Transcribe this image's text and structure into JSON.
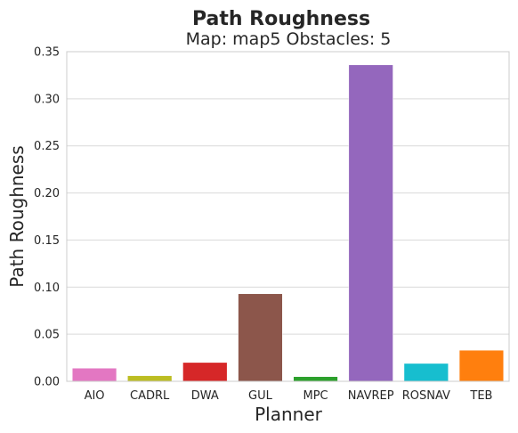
{
  "chart_data": {
    "type": "bar",
    "title": "Path Roughness",
    "subtitle": "Map: map5 Obstacles: 5",
    "xlabel": "Planner",
    "ylabel": "Path Roughness",
    "categories": [
      "AIO",
      "CADRL",
      "DWA",
      "GUL",
      "MPC",
      "NAVREP",
      "ROSNAV",
      "TEB"
    ],
    "values": [
      0.014,
      0.006,
      0.02,
      0.093,
      0.005,
      0.336,
      0.019,
      0.033
    ],
    "colors": [
      "#e377c2",
      "#bcbd22",
      "#d62728",
      "#8c564b",
      "#2ca02c",
      "#9467bd",
      "#17becf",
      "#ff7f0e"
    ],
    "ylim": [
      0,
      0.35
    ],
    "yticks": [
      "0.00",
      "0.05",
      "0.10",
      "0.15",
      "0.20",
      "0.25",
      "0.30",
      "0.35"
    ],
    "grid": true
  }
}
